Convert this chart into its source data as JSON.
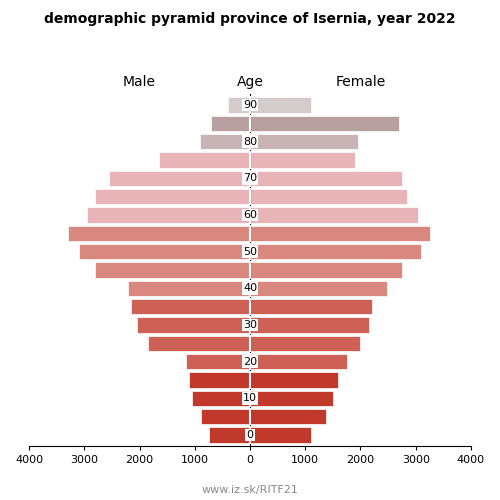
{
  "title": "demographic pyramid province of Isernia, year 2022",
  "age_groups": [
    0,
    5,
    10,
    15,
    20,
    25,
    30,
    35,
    40,
    45,
    50,
    55,
    60,
    65,
    70,
    75,
    80,
    85,
    90
  ],
  "age_tick_positions": [
    0,
    2,
    4,
    6,
    8,
    10,
    12,
    14,
    16,
    18
  ],
  "age_tick_labels": [
    "0",
    "10",
    "20",
    "30",
    "40",
    "50",
    "60",
    "70",
    "80",
    "90"
  ],
  "male_values": [
    750,
    880,
    1050,
    1100,
    1150,
    1850,
    2050,
    2150,
    2200,
    2800,
    3100,
    3300,
    2950,
    2800,
    2550,
    1650,
    900,
    700,
    400
  ],
  "female_values": [
    1100,
    1380,
    1500,
    1600,
    1750,
    2000,
    2150,
    2200,
    2480,
    2750,
    3100,
    3250,
    3050,
    2850,
    2750,
    1900,
    1950,
    2700,
    1100
  ],
  "xlim": 4000,
  "xticks": [
    4000,
    3000,
    2000,
    1000,
    0,
    1000,
    2000,
    3000,
    4000
  ],
  "xlabel_left": "Male",
  "xlabel_right": "Female",
  "xlabel_center": "Age",
  "footer": "www.iz.sk/RITF21",
  "colors_by_group": [
    "#c0392b",
    "#c0392b",
    "#c0392b",
    "#c0392b",
    "#cd6155",
    "#cd6155",
    "#cd6155",
    "#cd6155",
    "#d98880",
    "#d98880",
    "#d98880",
    "#d98880",
    "#e8b4b8",
    "#e8b4b8",
    "#e8b4b8",
    "#e8b4b8",
    "#c8b4b4",
    "#b8a0a0",
    "#d4cccc"
  ],
  "bg_color": "#ffffff",
  "bar_edge_color": "#ffffff",
  "title_fontsize": 10,
  "axis_label_fontsize": 10,
  "tick_fontsize": 8,
  "footer_fontsize": 8,
  "footer_color": "#888888"
}
